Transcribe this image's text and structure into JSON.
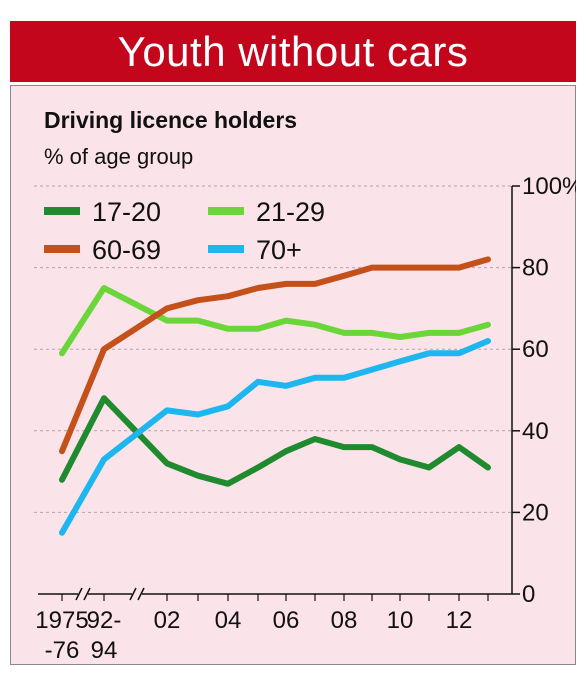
{
  "header": {
    "banner_title": "Youth without cars"
  },
  "chart_data": {
    "type": "line",
    "title": "Driving licence holders",
    "subtitle": "% of age group",
    "ylim": [
      0,
      100
    ],
    "y_ticks": [
      0,
      20,
      40,
      60,
      80,
      100
    ],
    "y_tick_labels": [
      "0",
      "20",
      "40",
      "60",
      "80",
      "100%"
    ],
    "grid": true,
    "legend_position": "top-left",
    "x": [
      "1975-76",
      "92-94",
      "02",
      "03",
      "04",
      "05",
      "06",
      "07",
      "08",
      "09",
      "10",
      "11",
      "12",
      "13"
    ],
    "x_ticks": [
      {
        "x": "1975-76",
        "label_line1": "1975",
        "label_line2": "-76"
      },
      {
        "x": "92-94",
        "label_line1": "92-",
        "label_line2": "94"
      },
      {
        "x": "02",
        "label_line1": "02",
        "label_line2": ""
      },
      {
        "x": "04",
        "label_line1": "04",
        "label_line2": ""
      },
      {
        "x": "06",
        "label_line1": "06",
        "label_line2": ""
      },
      {
        "x": "08",
        "label_line1": "08",
        "label_line2": ""
      },
      {
        "x": "10",
        "label_line1": "10",
        "label_line2": ""
      },
      {
        "x": "12",
        "label_line1": "12",
        "label_line2": ""
      }
    ],
    "series": [
      {
        "name": "17-20",
        "color": "#1f8a2e",
        "values": [
          28,
          48,
          32,
          29,
          27,
          31,
          35,
          38,
          36,
          36,
          33,
          31,
          36,
          31
        ]
      },
      {
        "name": "21-29",
        "color": "#6bd63a",
        "values": [
          59,
          75,
          67,
          67,
          65,
          65,
          67,
          66,
          64,
          64,
          63,
          64,
          64,
          66
        ]
      },
      {
        "name": "60-69",
        "color": "#c4501a",
        "values": [
          35,
          60,
          70,
          72,
          73,
          75,
          76,
          76,
          78,
          80,
          80,
          80,
          80,
          82
        ]
      },
      {
        "name": "70+",
        "color": "#1eb6ef",
        "values": [
          15,
          33,
          45,
          44,
          46,
          52,
          51,
          53,
          53,
          55,
          57,
          59,
          59,
          62
        ]
      }
    ]
  }
}
